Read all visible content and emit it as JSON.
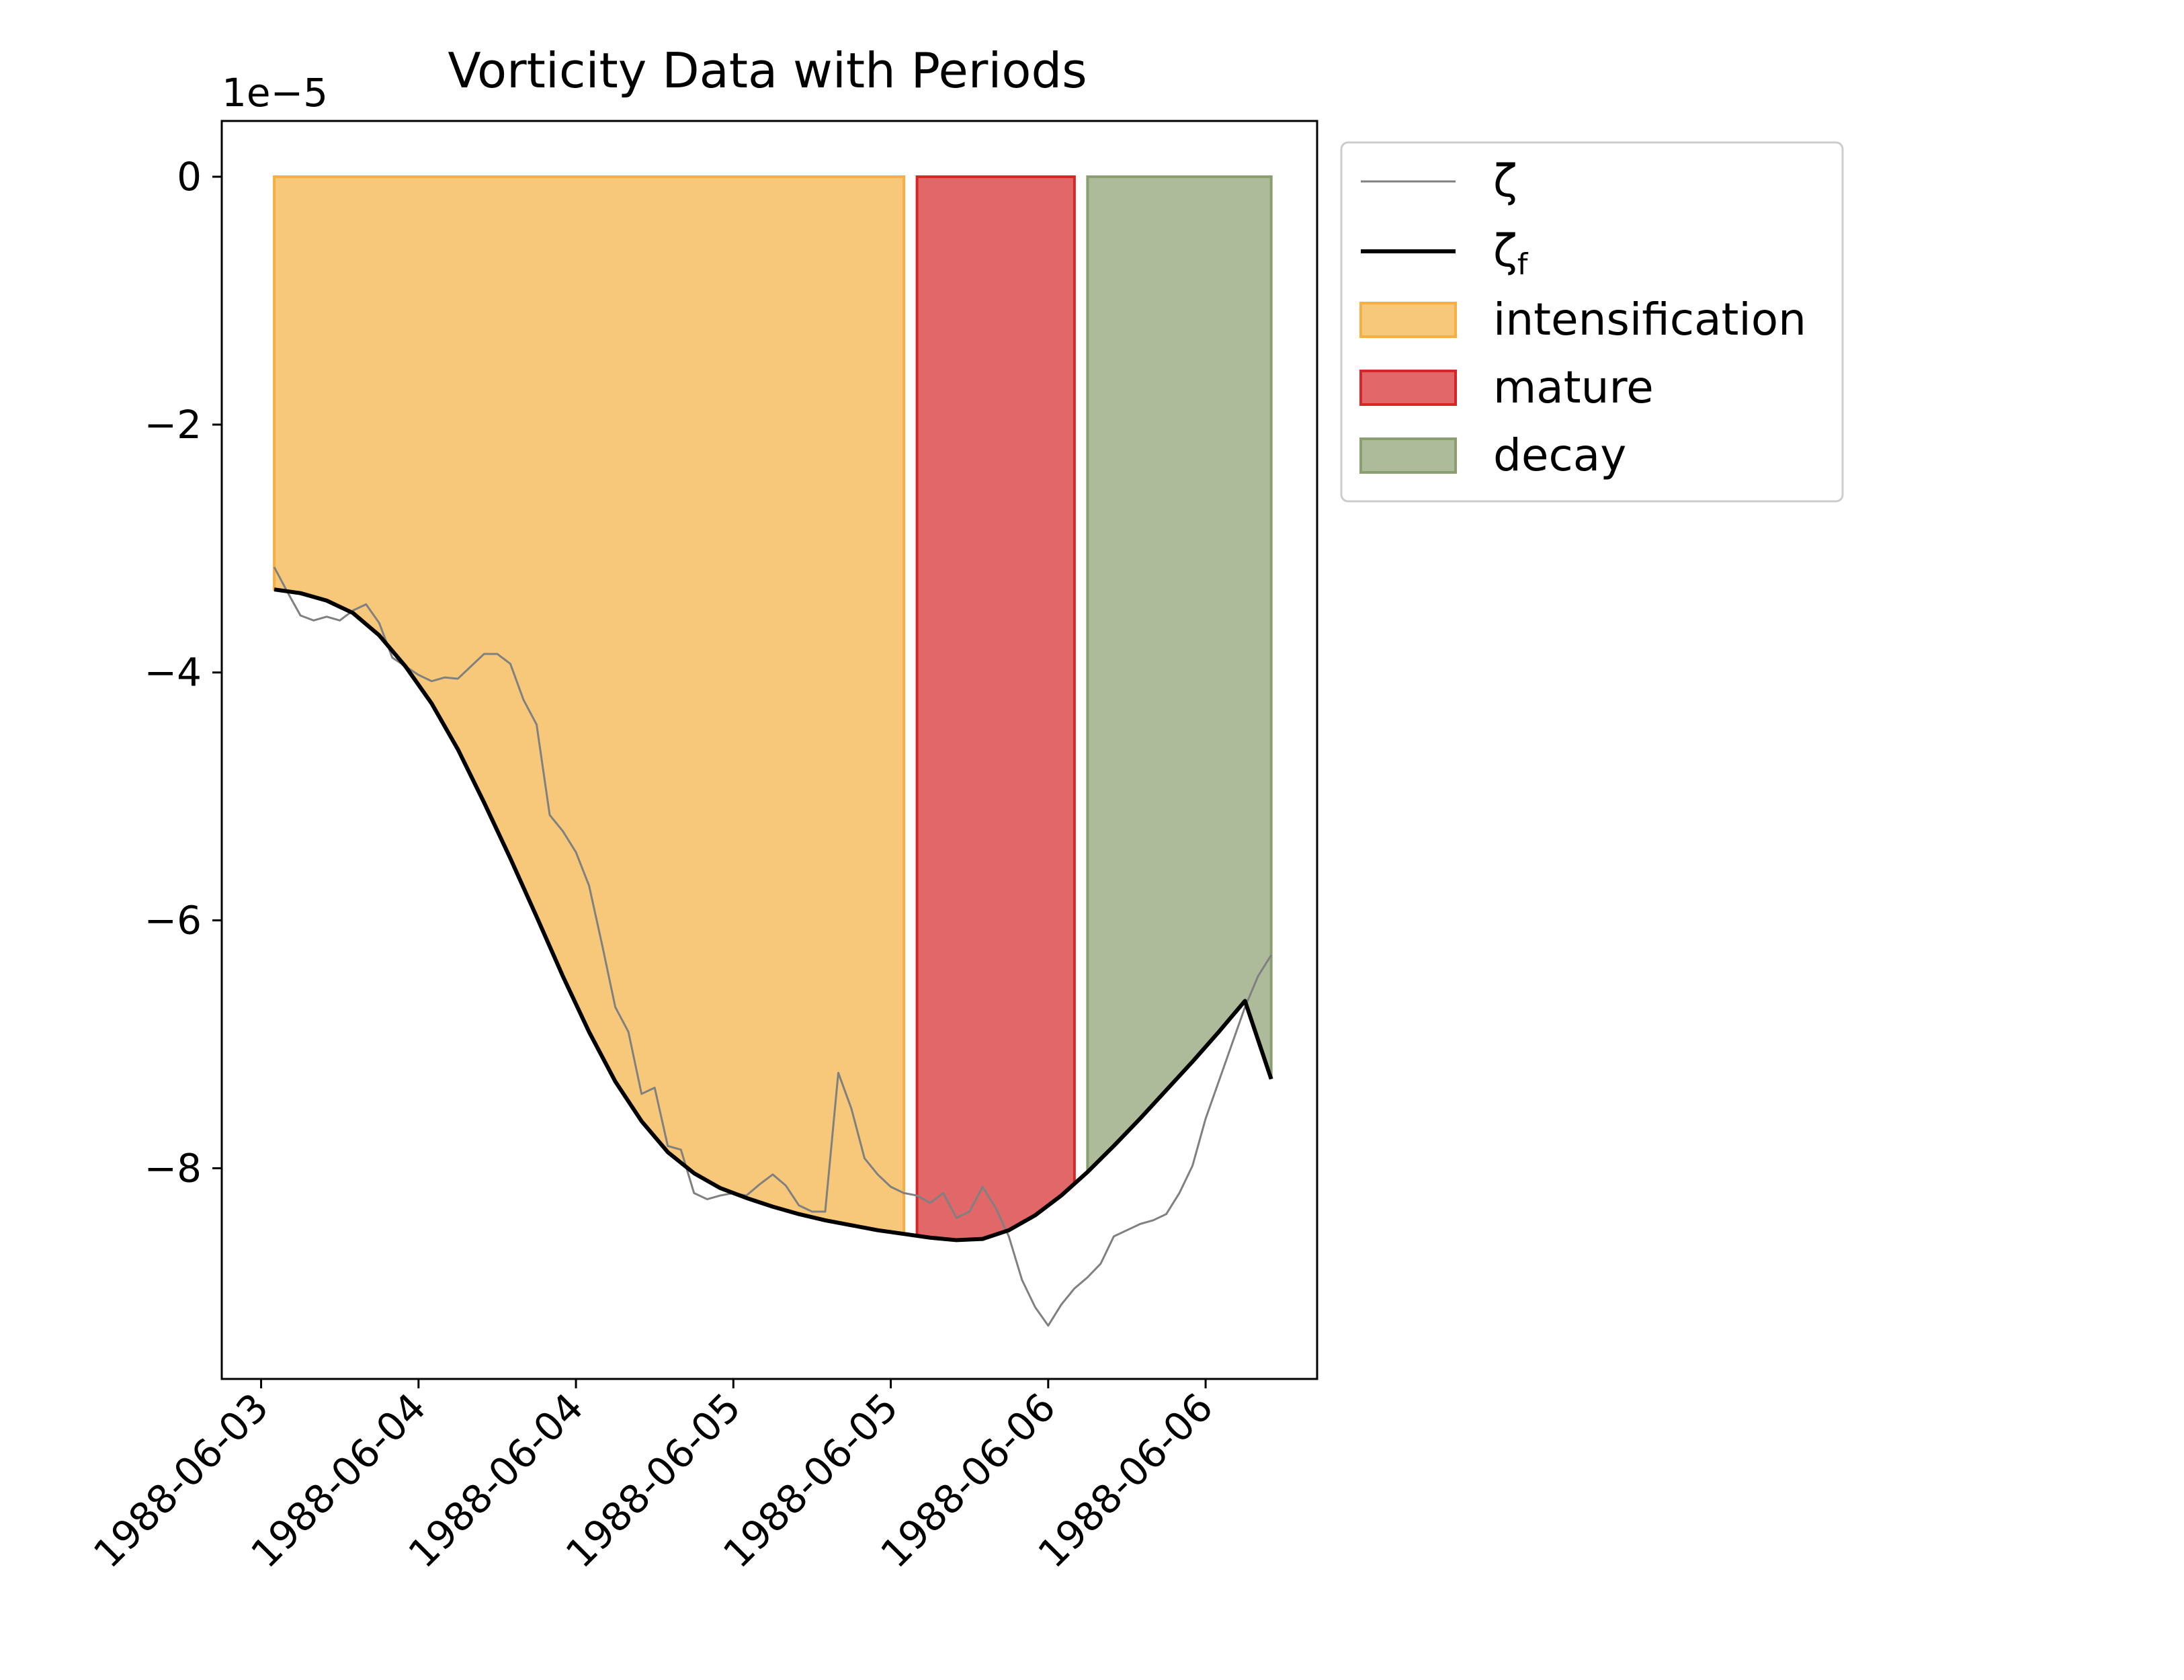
{
  "chart_data": {
    "type": "line",
    "title": "Vorticity Data with Periods",
    "scale_label": "1e−5",
    "x_tick_labels": [
      "1988-06-03",
      "1988-06-04",
      "1988-06-04",
      "1988-06-05",
      "1988-06-05",
      "1988-06-06",
      "1988-06-06"
    ],
    "x_tick_hours": [
      0,
      24,
      48,
      72,
      96,
      120,
      144
    ],
    "x_start": "1988-06-03 00:00",
    "xlim_hours": [
      -6,
      161
    ],
    "y_tick_labels": [
      "0",
      "−2",
      "−4",
      "−6",
      "−8"
    ],
    "y_ticks": [
      0,
      -2,
      -4,
      -6,
      -8
    ],
    "ylim": [
      -9.7,
      0.45
    ],
    "y_unit_multiplier": 1e-05,
    "xlabel": "",
    "ylabel": "",
    "grid": false,
    "legend_position": "outside-right-top",
    "legend": [
      {
        "label": "ζ",
        "kind": "line-thin"
      },
      {
        "label": "ζ",
        "subscript": "f",
        "kind": "line-thick"
      },
      {
        "label": "intensification",
        "kind": "patch"
      },
      {
        "label": "mature",
        "kind": "patch"
      },
      {
        "label": "decay",
        "kind": "patch"
      }
    ],
    "periods": [
      {
        "name": "intensification",
        "start_hour": 2,
        "end_hour": 98,
        "color": "#f5b041"
      },
      {
        "name": "mature",
        "start_hour": 100,
        "end_hour": 124,
        "color": "#d62728"
      },
      {
        "name": "decay",
        "start_hour": 126,
        "end_hour": 154,
        "color": "#8a9e70"
      }
    ],
    "series": [
      {
        "name": "ζ",
        "color": "#808080",
        "hours": [
          2,
          4,
          6,
          8,
          10,
          12,
          14,
          16,
          18,
          20,
          22,
          24,
          26,
          28,
          30,
          32,
          34,
          36,
          38,
          40,
          42,
          44,
          46,
          48,
          50,
          52,
          54,
          56,
          58,
          60,
          62,
          64,
          66,
          68,
          70,
          72,
          74,
          76,
          78,
          80,
          82,
          84,
          86,
          88,
          90,
          92,
          94,
          96,
          98,
          100,
          102,
          104,
          106,
          108,
          110,
          112,
          114,
          116,
          118,
          120,
          122,
          124,
          126,
          128,
          130,
          132,
          134,
          136,
          138,
          140,
          142,
          144,
          146,
          148,
          150,
          152,
          154
        ],
        "values": [
          -3.15,
          -3.35,
          -3.54,
          -3.58,
          -3.55,
          -3.58,
          -3.5,
          -3.45,
          -3.6,
          -3.88,
          -3.95,
          -4.02,
          -4.07,
          -4.04,
          -4.05,
          -3.95,
          -3.85,
          -3.85,
          -3.93,
          -4.22,
          -4.42,
          -5.15,
          -5.28,
          -5.45,
          -5.72,
          -6.2,
          -6.7,
          -6.9,
          -7.4,
          -7.35,
          -7.82,
          -7.85,
          -8.2,
          -8.25,
          -8.22,
          -8.2,
          -8.22,
          -8.13,
          -8.05,
          -8.14,
          -8.3,
          -8.35,
          -8.35,
          -7.23,
          -7.52,
          -7.92,
          -8.05,
          -8.15,
          -8.2,
          -8.22,
          -8.28,
          -8.2,
          -8.4,
          -8.35,
          -8.15,
          -8.32,
          -8.55,
          -8.9,
          -9.12,
          -9.27,
          -9.1,
          -8.97,
          -8.88,
          -8.77,
          -8.55,
          -8.5,
          -8.45,
          -8.42,
          -8.37,
          -8.2,
          -7.98,
          -7.6,
          -7.3,
          -7.0,
          -6.7,
          -6.45,
          -6.28
        ]
      },
      {
        "name": "ζf",
        "color": "#000000",
        "hours": [
          2,
          6,
          10,
          14,
          18,
          22,
          26,
          30,
          34,
          38,
          42,
          46,
          50,
          54,
          58,
          62,
          66,
          70,
          74,
          78,
          82,
          86,
          90,
          94,
          98,
          102,
          106,
          110,
          114,
          118,
          122,
          126,
          130,
          134,
          138,
          142,
          146,
          150,
          154
        ],
        "values": [
          -3.33,
          -3.36,
          -3.42,
          -3.52,
          -3.7,
          -3.95,
          -4.25,
          -4.62,
          -5.05,
          -5.5,
          -5.97,
          -6.45,
          -6.9,
          -7.3,
          -7.62,
          -7.87,
          -8.04,
          -8.16,
          -8.24,
          -8.31,
          -8.37,
          -8.42,
          -8.46,
          -8.5,
          -8.53,
          -8.56,
          -8.58,
          -8.57,
          -8.5,
          -8.38,
          -8.22,
          -8.03,
          -7.82,
          -7.6,
          -7.37,
          -7.14,
          -6.9,
          -6.65,
          -7.28
        ]
      }
    ]
  }
}
